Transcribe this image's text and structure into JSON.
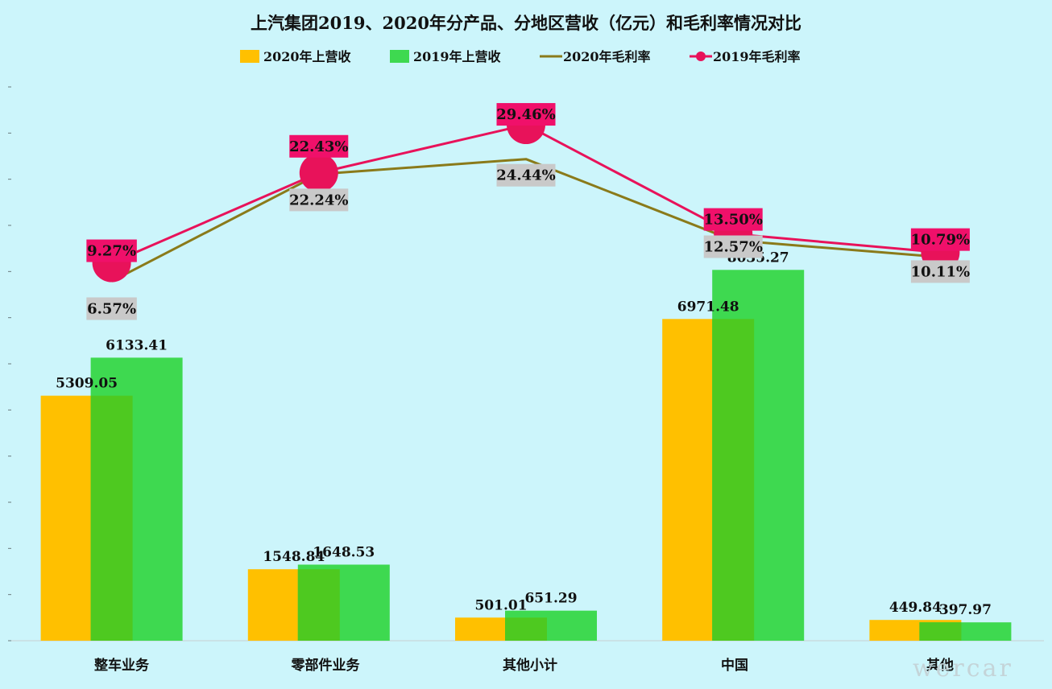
{
  "chart_data": {
    "type": "bar",
    "title": "上汽集团2019、2020年分产品、分地区营收（亿元）和毛利率情况对比",
    "categories": [
      "整车业务",
      "零部件业务",
      "其他小计",
      "中国",
      "其他"
    ],
    "series": [
      {
        "name": "2020年上营收",
        "kind": "bar",
        "color": "#ffc000",
        "values": [
          5309.05,
          1548.84,
          501.01,
          6971.48,
          449.84
        ]
      },
      {
        "name": "2019年上营收",
        "kind": "bar",
        "color": "#3ed950",
        "values": [
          6133.41,
          1648.53,
          651.29,
          8035.27,
          397.97
        ]
      },
      {
        "name": "2020年毛利率",
        "kind": "line",
        "color": "#8a7a1a",
        "values": [
          6.57,
          22.24,
          24.44,
          12.57,
          10.11
        ]
      },
      {
        "name": "2019年毛利率",
        "kind": "line",
        "color": "#e8125a",
        "values": [
          9.27,
          22.43,
          29.46,
          13.5,
          10.79
        ]
      }
    ],
    "display": {
      "rev_2020": [
        "5309.05",
        "1548.84",
        "501.01",
        "6971.48",
        "449.84"
      ],
      "rev_2019": [
        "6133.41",
        "1648.53",
        "651.29",
        "8035.27",
        "397.97"
      ],
      "gm_2020": [
        "6.57%",
        "22.24%",
        "24.44%",
        "12.57%",
        "10.11%"
      ],
      "gm_2019": [
        "9.27%",
        "22.43%",
        "29.46%",
        "13.50%",
        "10.79%"
      ]
    },
    "colors": {
      "background": "#ccf5fb",
      "overlap": "#4ec920",
      "gm2020_label_bg": "#c9c9c9",
      "gm2019_label_bg": "#f0106a"
    },
    "ylim_revenue": [
      0,
      12000
    ],
    "ylim_rate": [
      -46.0,
      35.0
    ],
    "grid": false,
    "legend_position": "top"
  },
  "watermark": "wercar"
}
